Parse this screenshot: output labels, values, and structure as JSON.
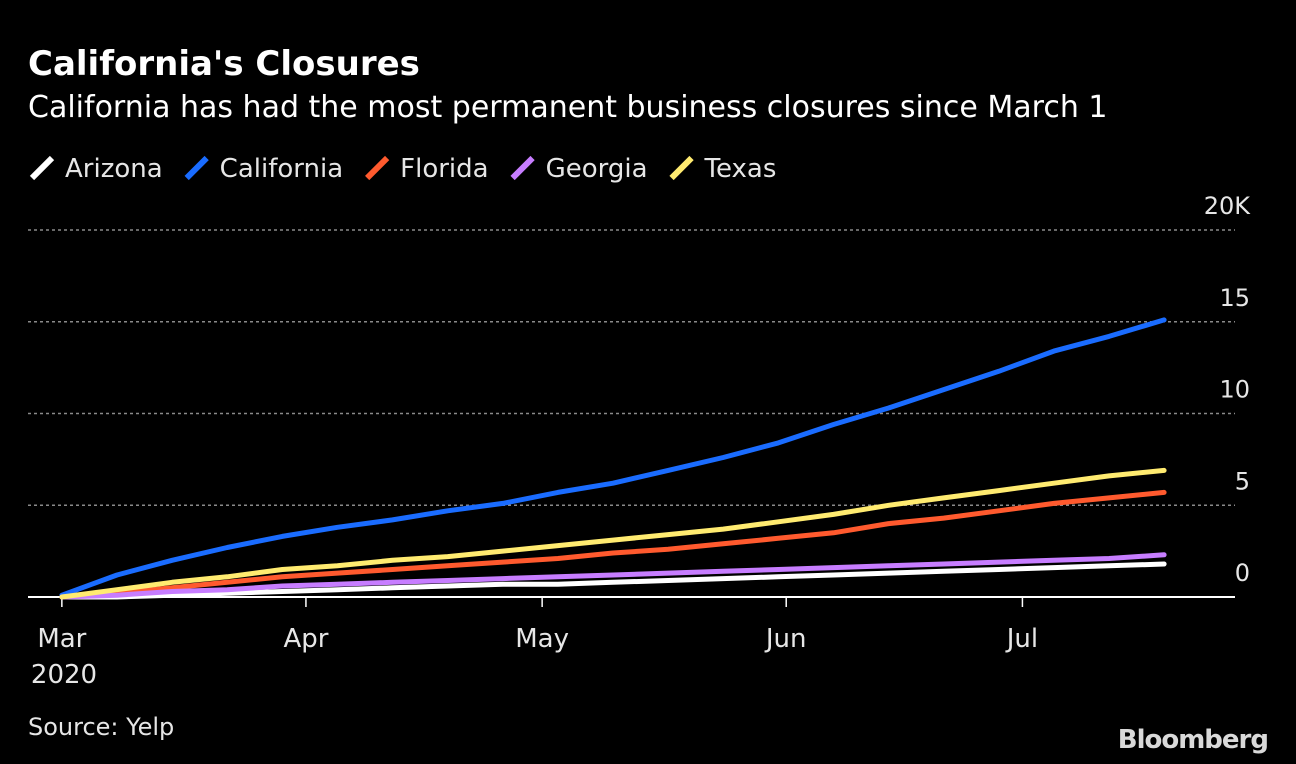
{
  "chart_data": {
    "type": "line",
    "title": "California's Closures",
    "subtitle": "California has had the most permanent business closures since March 1",
    "source": "Source: Yelp",
    "brand": "Bloomberg",
    "year_label": "2020",
    "x": [
      0,
      7,
      14,
      21,
      28,
      35,
      42,
      49,
      56,
      63,
      70,
      77,
      84,
      91,
      98,
      105,
      112,
      119,
      126,
      133,
      140
    ],
    "xlim": [
      -4.3,
      149
    ],
    "xticks": [
      {
        "value": 0,
        "label": "Mar"
      },
      {
        "value": 31,
        "label": "Apr"
      },
      {
        "value": 61,
        "label": "May"
      },
      {
        "value": 92,
        "label": "Jun"
      },
      {
        "value": 122,
        "label": "Jul"
      }
    ],
    "ylim": [
      0,
      20
    ],
    "yticks": [
      0,
      5,
      10,
      15,
      {
        "value": 20,
        "label": "20K"
      }
    ],
    "grid": true,
    "legend": "top-left",
    "series": [
      {
        "name": "Arizona",
        "color": "#ffffff",
        "values": [
          0,
          0,
          0.1,
          0.2,
          0.3,
          0.4,
          0.5,
          0.6,
          0.7,
          0.7,
          0.8,
          0.9,
          1.0,
          1.1,
          1.2,
          1.3,
          1.4,
          1.5,
          1.6,
          1.7,
          1.8
        ]
      },
      {
        "name": "California",
        "color": "#1a6cff",
        "values": [
          0.1,
          1.2,
          2.0,
          2.7,
          3.3,
          3.8,
          4.2,
          4.7,
          5.1,
          5.7,
          6.2,
          6.9,
          7.6,
          8.4,
          9.4,
          10.3,
          11.3,
          12.3,
          13.4,
          14.2,
          15.1
        ]
      },
      {
        "name": "Florida",
        "color": "#ff5a2e",
        "values": [
          0,
          0.2,
          0.5,
          0.8,
          1.1,
          1.3,
          1.5,
          1.7,
          1.9,
          2.1,
          2.4,
          2.6,
          2.9,
          3.2,
          3.5,
          4.0,
          4.3,
          4.7,
          5.1,
          5.4,
          5.7
        ]
      },
      {
        "name": "Georgia",
        "color": "#c77dff",
        "values": [
          0,
          0.1,
          0.3,
          0.4,
          0.6,
          0.7,
          0.8,
          0.9,
          1.0,
          1.1,
          1.2,
          1.3,
          1.4,
          1.5,
          1.6,
          1.7,
          1.8,
          1.9,
          2.0,
          2.1,
          2.3
        ]
      },
      {
        "name": "Texas",
        "color": "#ffeb70",
        "values": [
          0,
          0.4,
          0.8,
          1.1,
          1.5,
          1.7,
          2.0,
          2.2,
          2.5,
          2.8,
          3.1,
          3.4,
          3.7,
          4.1,
          4.5,
          5.0,
          5.4,
          5.8,
          6.2,
          6.6,
          6.9
        ]
      }
    ]
  }
}
